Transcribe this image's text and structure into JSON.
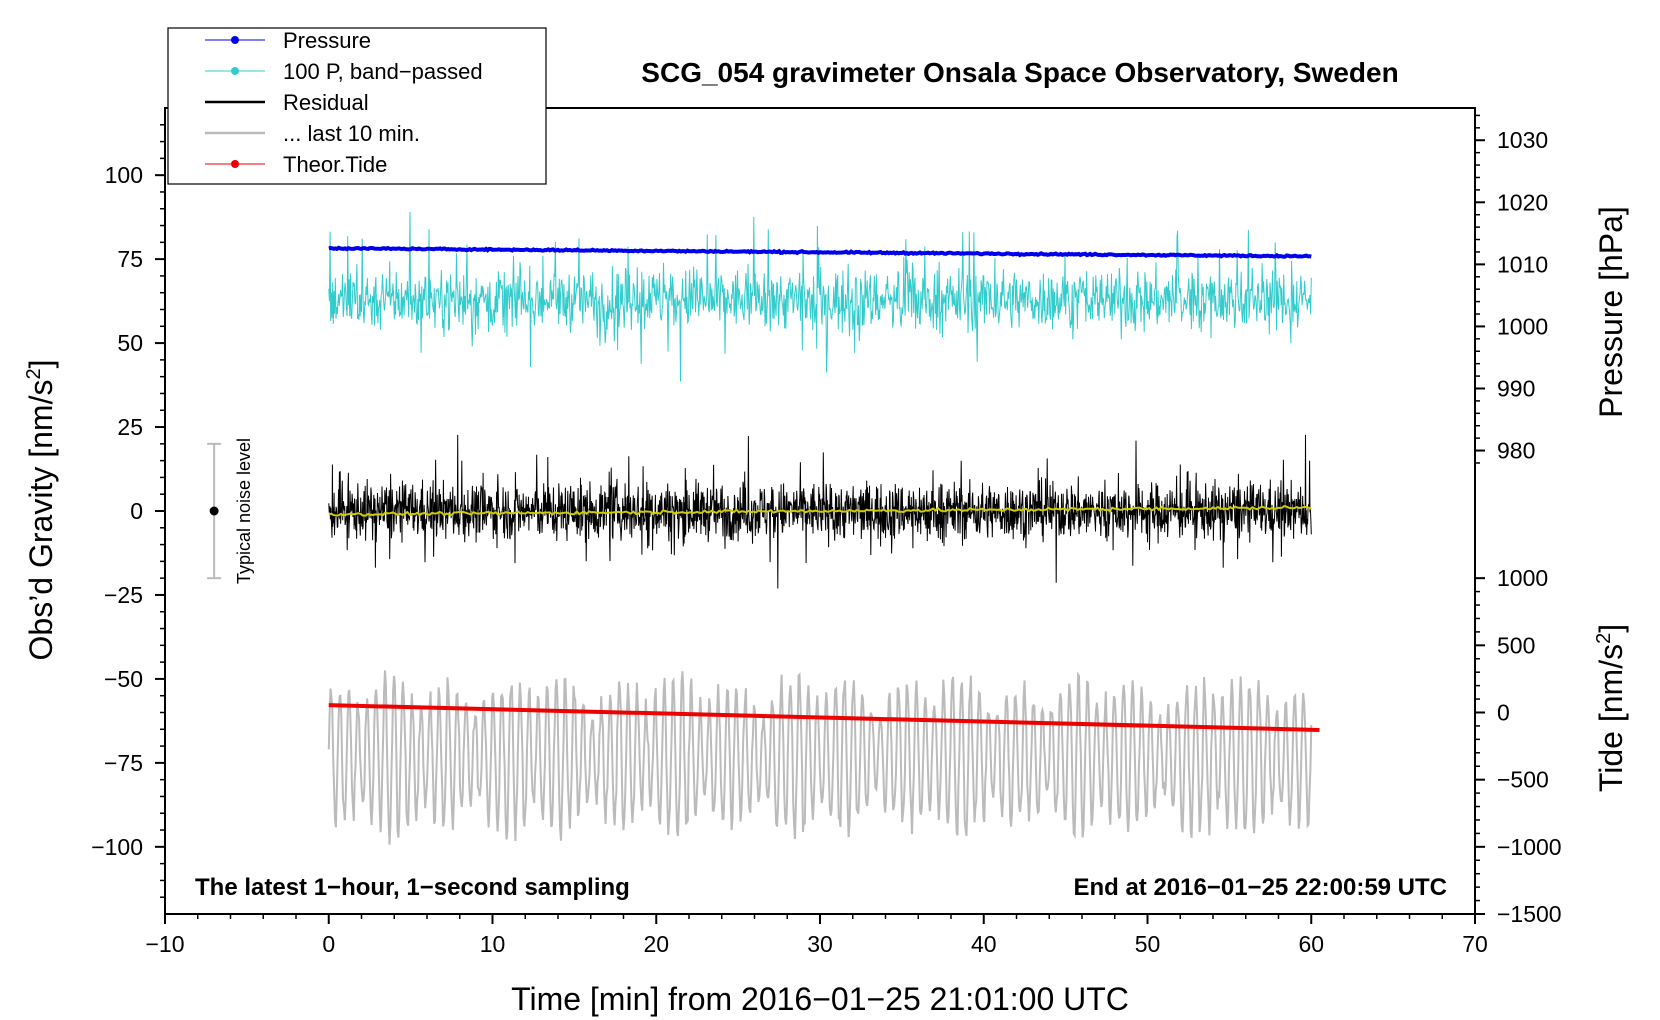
{
  "chart_data": {
    "type": "line",
    "title": "SCG_054 gravimeter Onsala Space Observatory, Sweden",
    "xlabel": "Time [min] from 2016−01−25 21:01:00 UTC",
    "ylabel_main": "Obs’d Gravity [nm/s",
    "ylabel_main_sup": "2",
    "ylabel_main_end": "]",
    "ylabel_pressure": "Pressure [hPa]",
    "ylabel_tide": "Tide [nm/s",
    "ylabel_tide_sup": "2",
    "ylabel_tide_end": "]",
    "xlim": [
      -10,
      70
    ],
    "ylim": [
      -120,
      120
    ],
    "x_ticks": [
      -10,
      0,
      10,
      20,
      30,
      40,
      50,
      60,
      70
    ],
    "x_tick_labels": [
      "−10",
      "0",
      "10",
      "20",
      "30",
      "40",
      "50",
      "60",
      "70"
    ],
    "y_ticks": [
      -100,
      -75,
      -50,
      -25,
      0,
      25,
      50,
      75,
      100
    ],
    "y_tick_labels": [
      "−100",
      "−75",
      "−50",
      "−25",
      "0",
      "25",
      "50",
      "75",
      "100"
    ],
    "pressure_axis": {
      "ticks": [
        980,
        990,
        1000,
        1010,
        1020,
        1030
      ],
      "tick_labels": [
        "980",
        "990",
        "1000",
        "1010",
        "1020",
        "1030"
      ],
      "map_value_to_gravity": [
        [
          980,
          18
        ],
        [
          1030,
          110.4
        ]
      ]
    },
    "tide_axis": {
      "ticks": [
        -1500,
        -1000,
        -500,
        0,
        500,
        1000
      ],
      "tick_labels": [
        "−1500",
        "−1000",
        "−500",
        "0",
        "500",
        "1000"
      ],
      "map_value_to_gravity": [
        [
          1000,
          -20
        ],
        [
          -1500,
          -120
        ]
      ]
    },
    "annotations": {
      "left_note": "The latest 1−hour, 1−second sampling",
      "right_note": "End at 2016−01−25 22:00:59 UTC",
      "noise_label": "Typical noise level",
      "noise_range": [
        -20,
        20
      ],
      "noise_x": -7
    },
    "legend_position": "top-left",
    "legend": [
      {
        "label": "Pressure",
        "color": "#0000ee",
        "marker": true
      },
      {
        "label": "100 P, band−passed",
        "color": "#33cccc",
        "marker": true
      },
      {
        "label": "Residual",
        "color": "#000000",
        "marker": false
      },
      {
        "label": "... last 10 min.",
        "color": "#bbbbbb",
        "marker": false
      },
      {
        "label": "Theor.Tide",
        "color": "#ee0000",
        "marker": true
      }
    ],
    "series": [
      {
        "name": "Pressure",
        "color": "#0000ee",
        "unit": "hPa",
        "x_range": [
          0,
          60
        ],
        "start": 1012.6,
        "end": 1011.3,
        "note": "plotted via pressure axis"
      },
      {
        "name": "100 P, band-passed",
        "color": "#33cccc",
        "unit": "nm/s2",
        "x_range": [
          0,
          60
        ],
        "mean": 63,
        "min": 37,
        "max": 89
      },
      {
        "name": "Residual",
        "color": "#000000",
        "unit": "nm/s2",
        "x_range": [
          0,
          60
        ],
        "mean": 0,
        "min": -29,
        "max": 30
      },
      {
        "name": "Residual smoothed",
        "color": "#cccc00",
        "unit": "nm/s2",
        "x_range": [
          0,
          60
        ],
        "start": -1,
        "end": 1
      },
      {
        "name": "... last 10 min.",
        "color": "#bbbbbb",
        "unit": "nm/s2",
        "x_range": [
          0,
          60
        ],
        "mean": -73,
        "min": -105,
        "max": -42
      },
      {
        "name": "Theor.Tide",
        "color": "#ee0000",
        "unit": "nm/s2 (tide axis)",
        "x_range": [
          0,
          60.5
        ],
        "start": 55,
        "end": -130
      }
    ]
  }
}
